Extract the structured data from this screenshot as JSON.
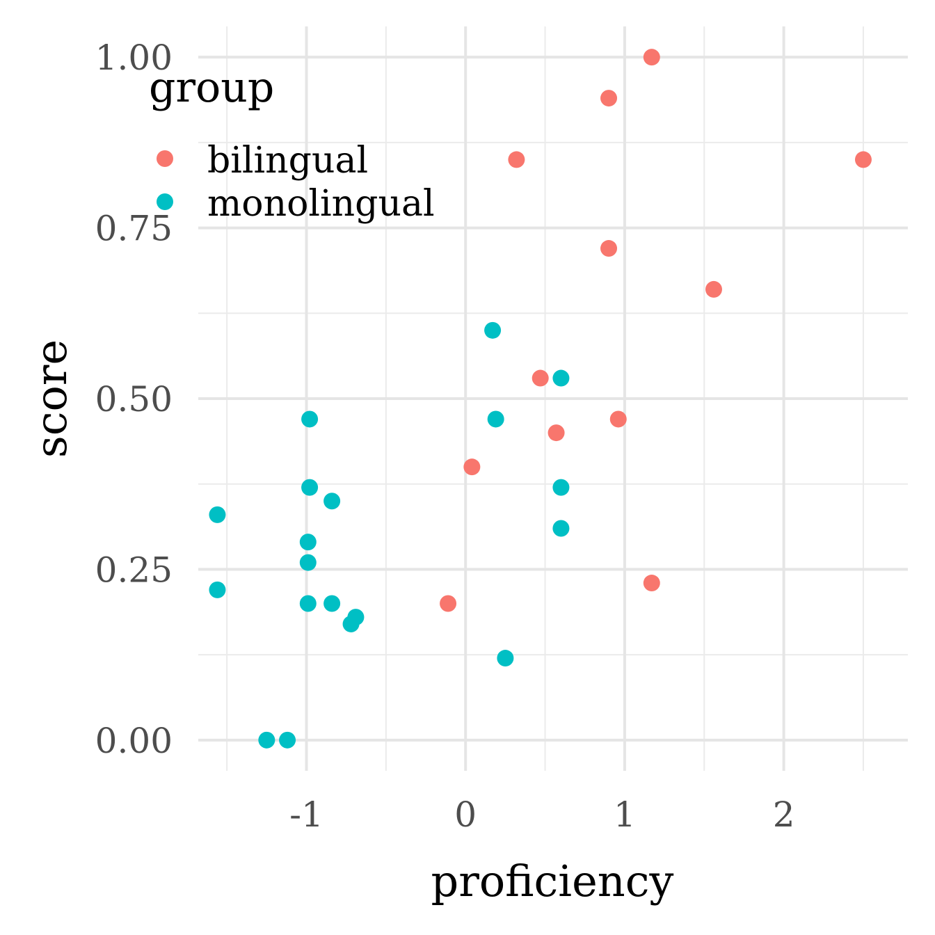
{
  "chart_data": {
    "type": "scatter",
    "xlabel": "proficiency",
    "ylabel": "score",
    "xlim": [
      -1.68,
      2.78
    ],
    "ylim": [
      -0.045,
      1.045
    ],
    "x_ticks": [
      -1,
      0,
      1,
      2
    ],
    "x_tick_labels": [
      "-1",
      "0",
      "1",
      "2"
    ],
    "y_ticks": [
      0,
      0.25,
      0.5,
      0.75,
      1.0
    ],
    "y_tick_labels": [
      "0.00",
      "0.25",
      "0.50",
      "0.75",
      "1.00"
    ],
    "grid": true,
    "legend": {
      "title": "group",
      "position": "top-left"
    },
    "series": [
      {
        "name": "bilingual",
        "color": "#f8766d",
        "points": [
          [
            1.17,
            1.0
          ],
          [
            0.9,
            0.94
          ],
          [
            0.32,
            0.85
          ],
          [
            2.5,
            0.85
          ],
          [
            0.9,
            0.72
          ],
          [
            1.56,
            0.66
          ],
          [
            0.47,
            0.53
          ],
          [
            0.96,
            0.47
          ],
          [
            0.57,
            0.45
          ],
          [
            0.04,
            0.4
          ],
          [
            1.17,
            0.23
          ],
          [
            -0.11,
            0.2
          ]
        ]
      },
      {
        "name": "monolingual",
        "color": "#00bfc4",
        "points": [
          [
            0.17,
            0.6
          ],
          [
            0.6,
            0.53
          ],
          [
            -0.98,
            0.47
          ],
          [
            0.19,
            0.47
          ],
          [
            -0.98,
            0.37
          ],
          [
            -0.84,
            0.35
          ],
          [
            0.6,
            0.37
          ],
          [
            -1.56,
            0.33
          ],
          [
            0.6,
            0.31
          ],
          [
            -0.99,
            0.29
          ],
          [
            -0.99,
            0.26
          ],
          [
            -1.56,
            0.22
          ],
          [
            -0.99,
            0.2
          ],
          [
            -0.84,
            0.2
          ],
          [
            -0.72,
            0.17
          ],
          [
            -0.69,
            0.18
          ],
          [
            0.25,
            0.12
          ],
          [
            -1.25,
            0.0
          ],
          [
            -1.12,
            0.0
          ]
        ]
      }
    ]
  }
}
